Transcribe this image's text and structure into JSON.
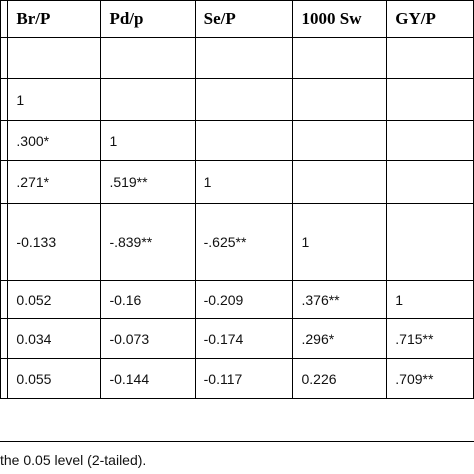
{
  "table": {
    "header": [
      "Br/P",
      "Pd/p",
      "Se/P",
      "1000 Sw",
      "GY/P"
    ],
    "rows": [
      [
        null,
        null,
        null,
        null,
        null
      ],
      [
        "1",
        null,
        null,
        null,
        null
      ],
      [
        ".300*",
        "1",
        null,
        null,
        null
      ],
      [
        ".271*",
        ".519**",
        "1",
        null,
        null
      ],
      [
        "-0.133",
        "-.839**",
        "-.625**",
        "1",
        null
      ],
      [
        "0.052",
        "-0.16",
        "-0.209",
        ".376**",
        "1"
      ],
      [
        "0.034",
        "-0.073",
        "-0.174",
        ".296*",
        ".715**"
      ],
      [
        "0.055",
        "-0.144",
        "-0.117",
        "0.226",
        ".709**"
      ]
    ]
  },
  "footnote": "the 0.05 level (2-tailed)."
}
